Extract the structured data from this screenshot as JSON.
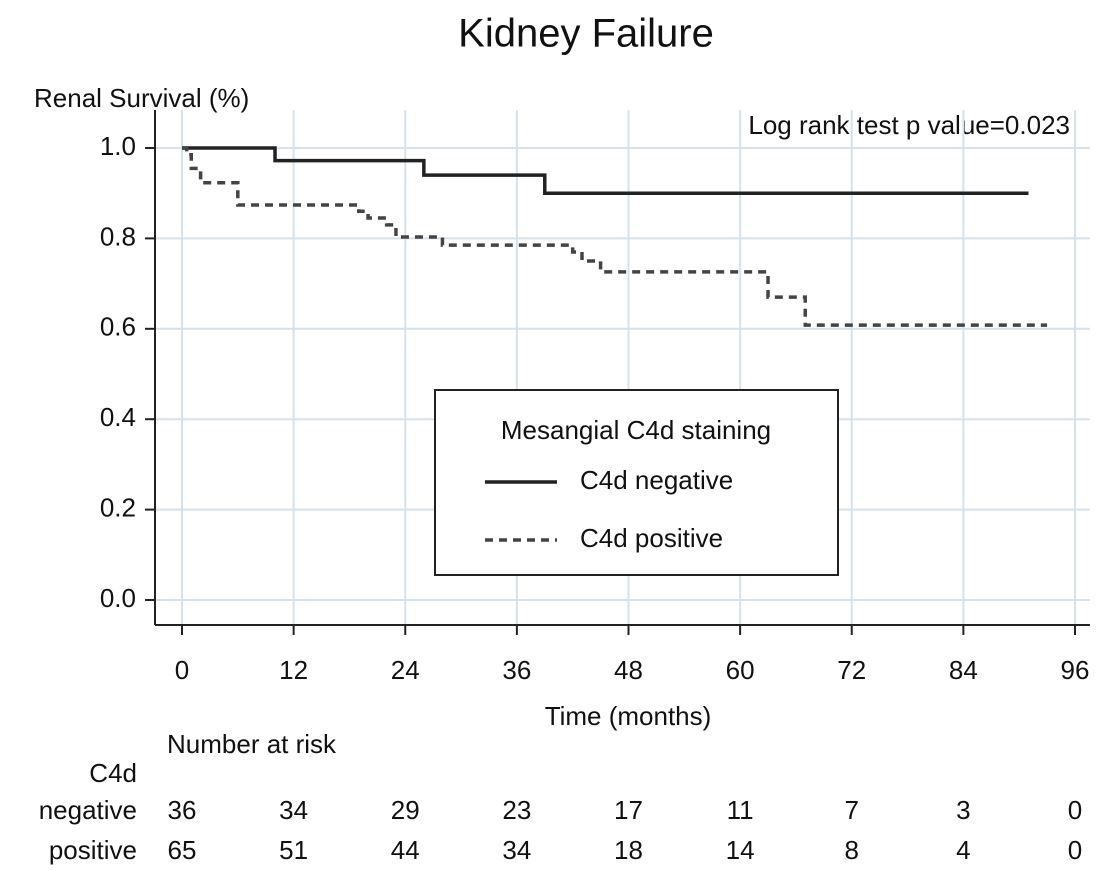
{
  "chart_data": {
    "type": "step",
    "title": "Kidney Failure",
    "y_label": "Renal Survival (%)",
    "x_label": "Time (months)",
    "annotation": "Log rank test p value=0.023",
    "legend_title": "Mesangial C4d staining",
    "xlim": [
      0,
      96
    ],
    "xticks": [
      0,
      12,
      24,
      36,
      48,
      60,
      72,
      84,
      96
    ],
    "ylim": [
      0,
      1
    ],
    "yticks": [
      {
        "value": 0,
        "label": "0.0"
      },
      0.2,
      0.4,
      0.6,
      0.8,
      {
        "value": 1,
        "label": "1.0"
      }
    ],
    "grid": true,
    "series": [
      {
        "name": "C4d negative",
        "color": "#222222",
        "dash": "solid",
        "x": [
          0,
          10,
          26,
          39,
          91
        ],
        "values": [
          1.0,
          0.972,
          0.94,
          0.9,
          0.9
        ]
      },
      {
        "name": "C4d positive",
        "color": "#444444",
        "dash": "dashed",
        "x": [
          0,
          0.5,
          1,
          2,
          6,
          19,
          20,
          22,
          23,
          28,
          42,
          43,
          45,
          63,
          67,
          93
        ],
        "values": [
          1.0,
          0.985,
          0.955,
          0.923,
          0.874,
          0.86,
          0.845,
          0.83,
          0.803,
          0.785,
          0.77,
          0.75,
          0.726,
          0.67,
          0.608,
          0.608
        ]
      }
    ],
    "risk_table": {
      "title": "Number at risk",
      "group_label": "C4d",
      "rows": [
        {
          "name": "negative",
          "values": [
            36,
            34,
            29,
            23,
            17,
            11,
            7,
            3,
            0
          ]
        },
        {
          "name": "positive",
          "values": [
            65,
            51,
            44,
            34,
            18,
            14,
            8,
            4,
            0
          ]
        }
      ]
    }
  }
}
